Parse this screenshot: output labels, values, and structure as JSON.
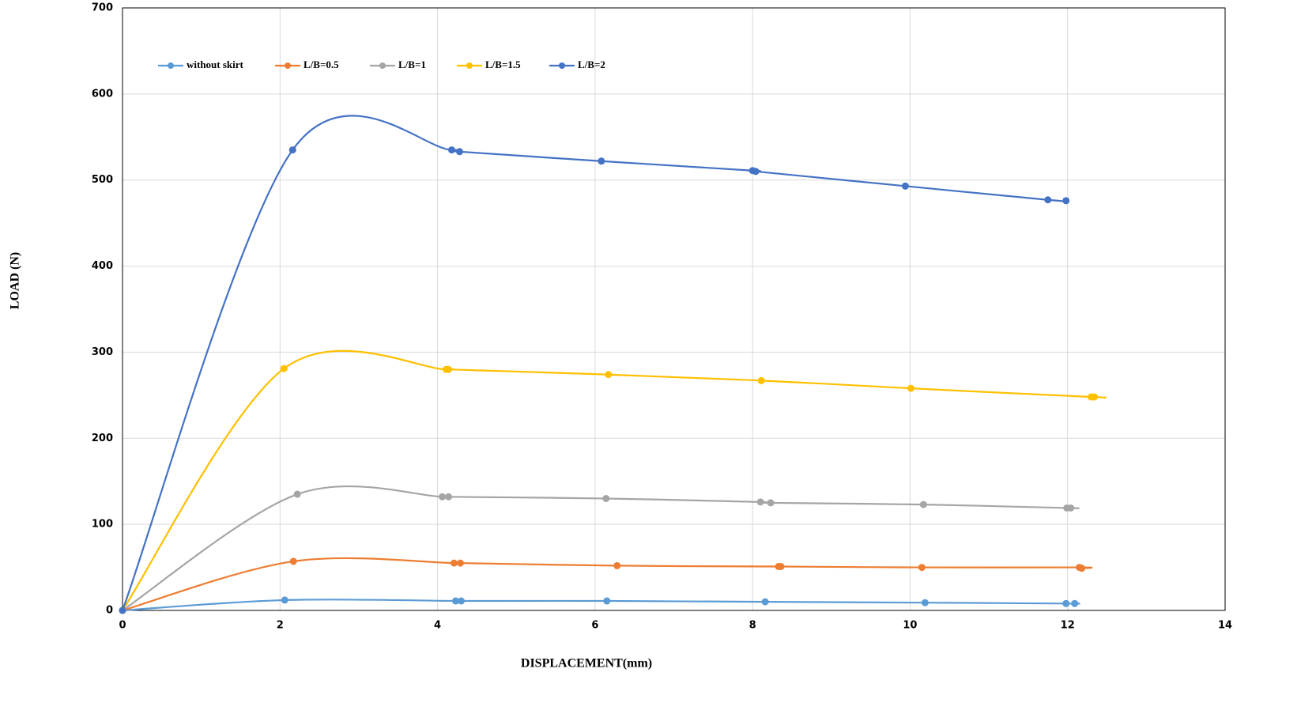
{
  "chart_data": {
    "type": "scatter-smooth",
    "x_label": "DISPLACEMENT(mm)",
    "y_label": "LOAD (N)",
    "xlim": [
      0,
      14
    ],
    "xticks": [
      0,
      2,
      4,
      6,
      8,
      10,
      12,
      14
    ],
    "ylim": [
      0,
      700
    ],
    "yticks": [
      0,
      100,
      200,
      300,
      400,
      500,
      600,
      700
    ],
    "grid": true,
    "legend": "top-left",
    "series": [
      {
        "name": "without skirt",
        "color": "#5b9bd5",
        "x": [
          0,
          2.06,
          4.23,
          4.3,
          6.15,
          8.16,
          10.19,
          11.98,
          12.09
        ],
        "values": [
          0,
          12,
          11,
          11,
          11,
          10,
          9,
          8,
          8
        ]
      },
      {
        "name": "L/B=0.5",
        "color": "#ed7d31",
        "x": [
          0,
          2.17,
          4.21,
          4.29,
          6.28,
          8.33,
          8.36,
          10.15,
          12.15,
          12.18
        ],
        "values": [
          0,
          57,
          55,
          55,
          52,
          51,
          51,
          50,
          50,
          49
        ]
      },
      {
        "name": "L/B=1",
        "color": "#a5a5a5",
        "x": [
          0,
          2.22,
          4.06,
          4.14,
          6.14,
          8.1,
          8.23,
          10.17,
          11.99,
          12.04
        ],
        "values": [
          0,
          135,
          132,
          132,
          130,
          126,
          125,
          123,
          119,
          119
        ]
      },
      {
        "name": "L/B=1.5",
        "color": "#ffc000",
        "x": [
          0,
          2.05,
          4.11,
          4.14,
          6.17,
          8.11,
          10.01,
          12.3,
          12.34
        ],
        "values": [
          0,
          281,
          280,
          280,
          274,
          267,
          258,
          248,
          248
        ]
      },
      {
        "name": "L/B=2",
        "color": "#4472c4",
        "x": [
          0,
          2.16,
          4.18,
          4.28,
          6.08,
          8.0,
          8.04,
          9.94,
          11.75,
          11.98
        ],
        "values": [
          0,
          535,
          535,
          533,
          522,
          511,
          510,
          493,
          477,
          476
        ]
      }
    ]
  }
}
